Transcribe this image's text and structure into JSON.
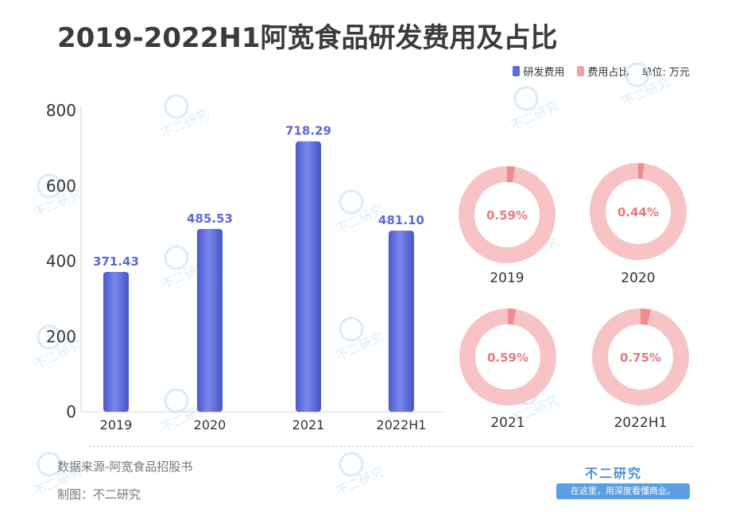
{
  "title": "2019-2022H1阿宽食品研发费用及占比",
  "legend": {
    "rd_label": "研发费用",
    "ratio_label": "费用占比",
    "unit": "单位: 万元",
    "rd_color": "#5b6ad8",
    "ratio_color": "#f2a0a3"
  },
  "chart_data": [
    {
      "type": "bar",
      "categories": [
        "2019",
        "2020",
        "2021",
        "2022H1"
      ],
      "values": [
        371.43,
        485.53,
        718.29,
        481.1
      ],
      "value_labels": [
        "371.43",
        "485.53",
        "718.29",
        "481.10"
      ],
      "ylim": [
        0,
        800
      ],
      "yticks": [
        0,
        200,
        400,
        600,
        800
      ],
      "grid": false,
      "series": [
        {
          "name": "研发费用",
          "values": [
            371.43,
            485.53,
            718.29,
            481.1
          ]
        }
      ]
    },
    {
      "type": "pie",
      "categories": [
        "2019",
        "2020",
        "2021",
        "2022H1"
      ],
      "values": [
        0.59,
        0.44,
        0.59,
        0.75
      ],
      "value_labels": [
        "0.59%",
        "0.44%",
        "0.59%",
        "0.75%"
      ],
      "series": [
        {
          "name": "费用占比",
          "values": [
            0.59,
            0.44,
            0.59,
            0.75
          ]
        }
      ]
    }
  ],
  "footer": {
    "source": "数据来源-阿宽食品招股书",
    "maker": "制图：不二研究",
    "brand_name": "不二研究",
    "brand_slogan": "在这里，用深度看懂商业。"
  },
  "watermark_text": "不二研究"
}
